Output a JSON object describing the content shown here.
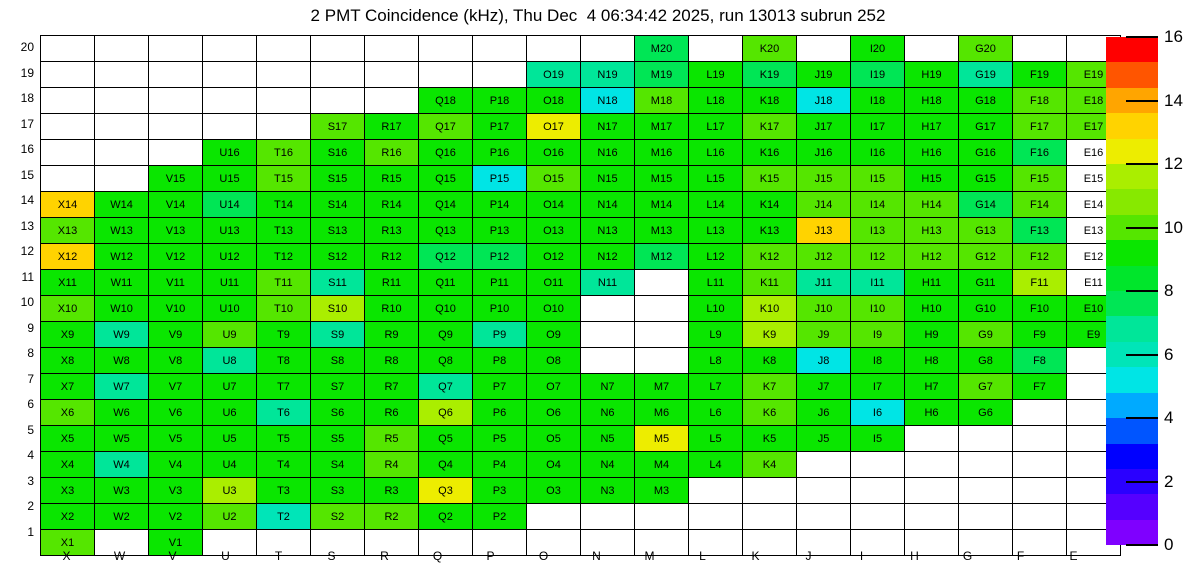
{
  "title": "2 PMT Coincidence (kHz), Thu Dec  4 06:34:42 2025, run 13013 subrun 252",
  "chart_data": {
    "type": "heatmap",
    "title": "2 PMT Coincidence (kHz), Thu Dec  4 06:34:42 2025, run 13013 subrun 252",
    "x_categories": [
      "X",
      "W",
      "V",
      "U",
      "T",
      "S",
      "R",
      "Q",
      "P",
      "O",
      "N",
      "M",
      "L",
      "K",
      "J",
      "I",
      "H",
      "G",
      "F",
      "E"
    ],
    "y_categories": [
      20,
      19,
      18,
      17,
      16,
      15,
      14,
      13,
      12,
      11,
      10,
      9,
      8,
      7,
      6,
      5,
      4,
      3,
      2,
      1
    ],
    "grid": true,
    "empty_cell_color": "#FFFFFF",
    "colorbar": {
      "min": 0,
      "max": 16,
      "ticks": [
        0,
        2,
        4,
        6,
        8,
        10,
        12,
        14,
        16
      ],
      "palette": [
        "#7F00FF",
        "#5500FF",
        "#2A00FF",
        "#0000FF",
        "#0055FF",
        "#00AAFF",
        "#00E5E5",
        "#00E5B8",
        "#00E699",
        "#00E655",
        "#00E62B",
        "#0AE600",
        "#55E600",
        "#87E900",
        "#AAEE00",
        "#EDED00",
        "#FFD300",
        "#FFA500",
        "#FF5500",
        "#FF0000"
      ]
    },
    "cells": [
      [
        "M20",
        7.6
      ],
      [
        "K20",
        10
      ],
      [
        "I20",
        9
      ],
      [
        "G20",
        10
      ],
      [
        "O19",
        6.8
      ],
      [
        "N19",
        6.8
      ],
      [
        "M19",
        7.6
      ],
      [
        "L19",
        9
      ],
      [
        "K19",
        7.6
      ],
      [
        "J19",
        9
      ],
      [
        "I19",
        7.6
      ],
      [
        "H19",
        9
      ],
      [
        "G19",
        6.8
      ],
      [
        "F19",
        9
      ],
      [
        "E19",
        10
      ],
      [
        "Q18",
        9
      ],
      [
        "P18",
        9
      ],
      [
        "O18",
        9
      ],
      [
        "N18",
        5.2
      ],
      [
        "M18",
        10
      ],
      [
        "L18",
        9
      ],
      [
        "K18",
        9
      ],
      [
        "J18",
        5.2
      ],
      [
        "I18",
        9
      ],
      [
        "H18",
        9
      ],
      [
        "G18",
        9
      ],
      [
        "F18",
        10
      ],
      [
        "E18",
        10
      ],
      [
        "S17",
        10
      ],
      [
        "R17",
        9
      ],
      [
        "Q17",
        10
      ],
      [
        "P17",
        9
      ],
      [
        "O17",
        12.4
      ],
      [
        "N17",
        9
      ],
      [
        "M17",
        9
      ],
      [
        "L17",
        9
      ],
      [
        "K17",
        10
      ],
      [
        "J17",
        9
      ],
      [
        "I17",
        9
      ],
      [
        "H17",
        9
      ],
      [
        "G17",
        9
      ],
      [
        "F17",
        10
      ],
      [
        "E17",
        10
      ],
      [
        "U16",
        9
      ],
      [
        "T16",
        10
      ],
      [
        "S16",
        9
      ],
      [
        "R16",
        10
      ],
      [
        "Q16",
        9
      ],
      [
        "P16",
        9
      ],
      [
        "O16",
        9
      ],
      [
        "N16",
        9
      ],
      [
        "M16",
        9
      ],
      [
        "L16",
        9
      ],
      [
        "K16",
        9
      ],
      [
        "J16",
        9
      ],
      [
        "I16",
        9
      ],
      [
        "H16",
        9
      ],
      [
        "G16",
        9
      ],
      [
        "F16",
        7.6
      ],
      [
        "E16",
        0
      ],
      [
        "V15",
        9
      ],
      [
        "U15",
        9
      ],
      [
        "T15",
        10
      ],
      [
        "S15",
        9
      ],
      [
        "R15",
        9
      ],
      [
        "Q15",
        9
      ],
      [
        "P15",
        5.2
      ],
      [
        "O15",
        10
      ],
      [
        "N15",
        9
      ],
      [
        "M15",
        9
      ],
      [
        "L15",
        9
      ],
      [
        "K15",
        10
      ],
      [
        "J15",
        10
      ],
      [
        "I15",
        10
      ],
      [
        "H15",
        9
      ],
      [
        "G15",
        9
      ],
      [
        "F15",
        10
      ],
      [
        "E15",
        0
      ],
      [
        "X14",
        13.2
      ],
      [
        "W14",
        9
      ],
      [
        "V14",
        9
      ],
      [
        "U14",
        7.6
      ],
      [
        "T14",
        9
      ],
      [
        "S14",
        9
      ],
      [
        "R14",
        9
      ],
      [
        "Q14",
        9
      ],
      [
        "P14",
        9
      ],
      [
        "O14",
        9
      ],
      [
        "N14",
        9
      ],
      [
        "M14",
        9
      ],
      [
        "L14",
        9
      ],
      [
        "K14",
        9
      ],
      [
        "J14",
        10
      ],
      [
        "I14",
        10
      ],
      [
        "H14",
        10
      ],
      [
        "G14",
        7.6
      ],
      [
        "F14",
        10
      ],
      [
        "E14",
        0
      ],
      [
        "X13",
        10
      ],
      [
        "W13",
        9
      ],
      [
        "V13",
        9
      ],
      [
        "U13",
        9
      ],
      [
        "T13",
        9
      ],
      [
        "S13",
        9
      ],
      [
        "R13",
        9
      ],
      [
        "Q13",
        9
      ],
      [
        "P13",
        9
      ],
      [
        "O13",
        9
      ],
      [
        "N13",
        9
      ],
      [
        "M13",
        9
      ],
      [
        "L13",
        9
      ],
      [
        "K13",
        9
      ],
      [
        "J13",
        13.2
      ],
      [
        "I13",
        10
      ],
      [
        "H13",
        10
      ],
      [
        "G13",
        10
      ],
      [
        "F13",
        7.6
      ],
      [
        "E13",
        0
      ],
      [
        "X12",
        13.2
      ],
      [
        "W12",
        9
      ],
      [
        "V12",
        9
      ],
      [
        "U12",
        9
      ],
      [
        "T12",
        9
      ],
      [
        "S12",
        9
      ],
      [
        "R12",
        9
      ],
      [
        "Q12",
        7.6
      ],
      [
        "P12",
        7.6
      ],
      [
        "O12",
        9
      ],
      [
        "N12",
        9
      ],
      [
        "M12",
        7.6
      ],
      [
        "L12",
        9
      ],
      [
        "K12",
        10
      ],
      [
        "J12",
        10
      ],
      [
        "I12",
        10
      ],
      [
        "H12",
        10
      ],
      [
        "G12",
        10
      ],
      [
        "F12",
        10
      ],
      [
        "E12",
        0
      ],
      [
        "X11",
        9
      ],
      [
        "W11",
        9
      ],
      [
        "V11",
        9
      ],
      [
        "U11",
        9
      ],
      [
        "T11",
        10
      ],
      [
        "S11",
        6.8
      ],
      [
        "R11",
        9
      ],
      [
        "Q11",
        9
      ],
      [
        "P11",
        9
      ],
      [
        "O11",
        9
      ],
      [
        "N11",
        6.8
      ],
      [
        "L11",
        9
      ],
      [
        "K11",
        10
      ],
      [
        "J11",
        6.8
      ],
      [
        "I11",
        6.8
      ],
      [
        "H11",
        9
      ],
      [
        "G11",
        9
      ],
      [
        "F11",
        11.5
      ],
      [
        "E11",
        0
      ],
      [
        "X10",
        10
      ],
      [
        "W10",
        9
      ],
      [
        "V10",
        9
      ],
      [
        "U10",
        9
      ],
      [
        "T10",
        10
      ],
      [
        "S10",
        11.5
      ],
      [
        "R10",
        9
      ],
      [
        "Q10",
        9
      ],
      [
        "P10",
        9
      ],
      [
        "O10",
        9
      ],
      [
        "L10",
        9
      ],
      [
        "K10",
        11.5
      ],
      [
        "J10",
        10
      ],
      [
        "I10",
        10
      ],
      [
        "H10",
        9
      ],
      [
        "G10",
        9
      ],
      [
        "F10",
        9
      ],
      [
        "E10",
        9
      ],
      [
        "X9",
        9
      ],
      [
        "W9",
        6.8
      ],
      [
        "V9",
        9
      ],
      [
        "U9",
        10
      ],
      [
        "T9",
        9
      ],
      [
        "S9",
        6.8
      ],
      [
        "R9",
        9
      ],
      [
        "Q9",
        9
      ],
      [
        "P9",
        6.8
      ],
      [
        "O9",
        9
      ],
      [
        "L9",
        9
      ],
      [
        "K9",
        11.5
      ],
      [
        "J9",
        10
      ],
      [
        "I9",
        10
      ],
      [
        "H9",
        9
      ],
      [
        "G9",
        10
      ],
      [
        "F9",
        9
      ],
      [
        "E9",
        9
      ],
      [
        "X8",
        9
      ],
      [
        "W8",
        9
      ],
      [
        "V8",
        9
      ],
      [
        "U8",
        6.8
      ],
      [
        "T8",
        9
      ],
      [
        "S8",
        9
      ],
      [
        "R8",
        9
      ],
      [
        "Q8",
        9
      ],
      [
        "P8",
        9
      ],
      [
        "O8",
        9
      ],
      [
        "L8",
        9
      ],
      [
        "K8",
        9
      ],
      [
        "J8",
        5.2
      ],
      [
        "I8",
        9
      ],
      [
        "H8",
        9
      ],
      [
        "G8",
        9
      ],
      [
        "F8",
        7.6
      ],
      [
        "X7",
        9
      ],
      [
        "W7",
        6.8
      ],
      [
        "V7",
        9
      ],
      [
        "U7",
        9
      ],
      [
        "T7",
        9
      ],
      [
        "S7",
        9
      ],
      [
        "R7",
        9
      ],
      [
        "Q7",
        6.8
      ],
      [
        "P7",
        9
      ],
      [
        "O7",
        9
      ],
      [
        "N7",
        9
      ],
      [
        "M7",
        9
      ],
      [
        "L7",
        9
      ],
      [
        "K7",
        10
      ],
      [
        "J7",
        9
      ],
      [
        "I7",
        9
      ],
      [
        "H7",
        9
      ],
      [
        "G7",
        10
      ],
      [
        "F7",
        9
      ],
      [
        "X6",
        10
      ],
      [
        "W6",
        9
      ],
      [
        "V6",
        9
      ],
      [
        "U6",
        9
      ],
      [
        "T6",
        6.8
      ],
      [
        "S6",
        9
      ],
      [
        "R6",
        9
      ],
      [
        "Q6",
        11.5
      ],
      [
        "P6",
        9
      ],
      [
        "O6",
        9
      ],
      [
        "N6",
        9
      ],
      [
        "M6",
        9
      ],
      [
        "L6",
        9
      ],
      [
        "K6",
        10
      ],
      [
        "J6",
        9
      ],
      [
        "I6",
        5.2
      ],
      [
        "H6",
        9
      ],
      [
        "G6",
        9
      ],
      [
        "X5",
        9
      ],
      [
        "W5",
        9
      ],
      [
        "V5",
        9
      ],
      [
        "U5",
        9
      ],
      [
        "T5",
        9
      ],
      [
        "S5",
        9
      ],
      [
        "R5",
        10
      ],
      [
        "Q5",
        9
      ],
      [
        "P5",
        9
      ],
      [
        "O5",
        9
      ],
      [
        "N5",
        9
      ],
      [
        "M5",
        12.4
      ],
      [
        "L5",
        9
      ],
      [
        "K5",
        9
      ],
      [
        "J5",
        9
      ],
      [
        "I5",
        9
      ],
      [
        "X4",
        9
      ],
      [
        "W4",
        6.8
      ],
      [
        "V4",
        9
      ],
      [
        "U4",
        9
      ],
      [
        "T4",
        9
      ],
      [
        "S4",
        9
      ],
      [
        "R4",
        10
      ],
      [
        "Q4",
        9
      ],
      [
        "P4",
        9
      ],
      [
        "O4",
        9
      ],
      [
        "N4",
        9
      ],
      [
        "M4",
        9
      ],
      [
        "L4",
        9
      ],
      [
        "K4",
        10
      ],
      [
        "X3",
        9
      ],
      [
        "W3",
        9
      ],
      [
        "V3",
        9
      ],
      [
        "U3",
        11.5
      ],
      [
        "T3",
        9
      ],
      [
        "S3",
        9
      ],
      [
        "R3",
        9
      ],
      [
        "Q3",
        12.4
      ],
      [
        "P3",
        9
      ],
      [
        "O3",
        9
      ],
      [
        "N3",
        9
      ],
      [
        "M3",
        9
      ],
      [
        "X2",
        9
      ],
      [
        "W2",
        9
      ],
      [
        "V2",
        9
      ],
      [
        "U2",
        10
      ],
      [
        "T2",
        6.0
      ],
      [
        "S2",
        10
      ],
      [
        "R2",
        10
      ],
      [
        "Q2",
        9
      ],
      [
        "P2",
        9
      ],
      [
        "X1",
        10
      ],
      [
        "V1",
        9
      ]
    ]
  }
}
